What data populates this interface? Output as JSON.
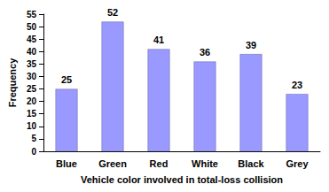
{
  "chart_data": {
    "type": "bar",
    "categories": [
      "Blue",
      "Green",
      "Red",
      "White",
      "Black",
      "Grey"
    ],
    "values": [
      25,
      52,
      41,
      36,
      39,
      23
    ],
    "color": "#9999ff",
    "xlabel": "Vehicle color involved in total-loss collision",
    "ylabel": "Frequency",
    "ylim": [
      0,
      55
    ],
    "yticks": [
      0,
      5,
      10,
      15,
      20,
      25,
      30,
      35,
      40,
      45,
      50,
      55
    ],
    "grid": false,
    "data_labels": true
  }
}
